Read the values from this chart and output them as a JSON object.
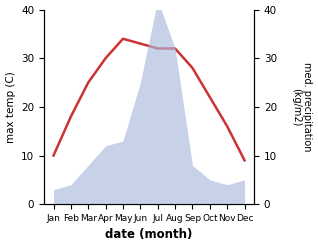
{
  "months": [
    "Jan",
    "Feb",
    "Mar",
    "Apr",
    "May",
    "Jun",
    "Jul",
    "Aug",
    "Sep",
    "Oct",
    "Nov",
    "Dec"
  ],
  "temperature": [
    10,
    18,
    25,
    30,
    34,
    33,
    32,
    32,
    28,
    22,
    16,
    9
  ],
  "precipitation": [
    3,
    4,
    8,
    12,
    13,
    25,
    42,
    32,
    8,
    5,
    4,
    5
  ],
  "temp_color": "#cc3333",
  "precip_color": "#aabbdd",
  "precip_fill_alpha": 0.65,
  "temp_ylim": [
    0,
    40
  ],
  "precip_ylim": [
    0,
    40
  ],
  "temp_yticks": [
    0,
    10,
    20,
    30,
    40
  ],
  "precip_yticks": [
    0,
    10,
    20,
    30,
    40
  ],
  "xlabel": "date (month)",
  "ylabel_left": "max temp (C)",
  "ylabel_right": "med. precipitation\n(kg/m2)",
  "figsize": [
    3.18,
    2.47
  ],
  "dpi": 100
}
